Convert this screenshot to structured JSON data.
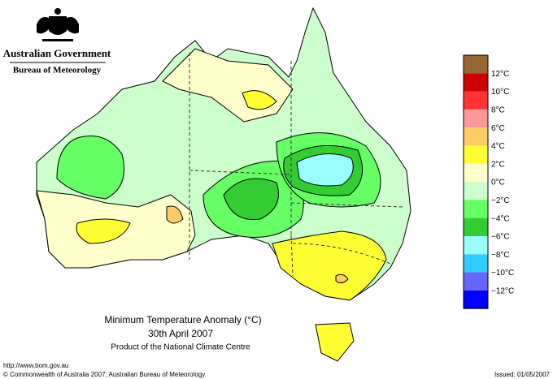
{
  "header": {
    "agency": "Australian Government",
    "bureau": "Bureau of Meteorology"
  },
  "map": {
    "title": "Minimum Temperature Anomaly (°C)",
    "date": "30th April 2007",
    "product": "Product of the National Climate Centre"
  },
  "legend": {
    "colors": [
      "#996633",
      "#cc0000",
      "#ff3333",
      "#ff9999",
      "#ffcc66",
      "#ffff33",
      "#ffffcc",
      "#ccffcc",
      "#66ff66",
      "#33cc33",
      "#99ffff",
      "#33ccff",
      "#6666ff",
      "#0000ff"
    ],
    "labels": [
      "12°C",
      "10°C",
      "8°C",
      "6°C",
      "4°C",
      "2°C",
      "0°C",
      "−2°C",
      "−4°C",
      "−6°C",
      "−8°C",
      "−10°C",
      "−12°C"
    ]
  },
  "footer": {
    "url": "http://www.bom.gov.au",
    "copyright": "© Commonwealth of Australia 2007, Australian Bureau of Meteorology",
    "issued": "Issued: 01/05/2007"
  }
}
